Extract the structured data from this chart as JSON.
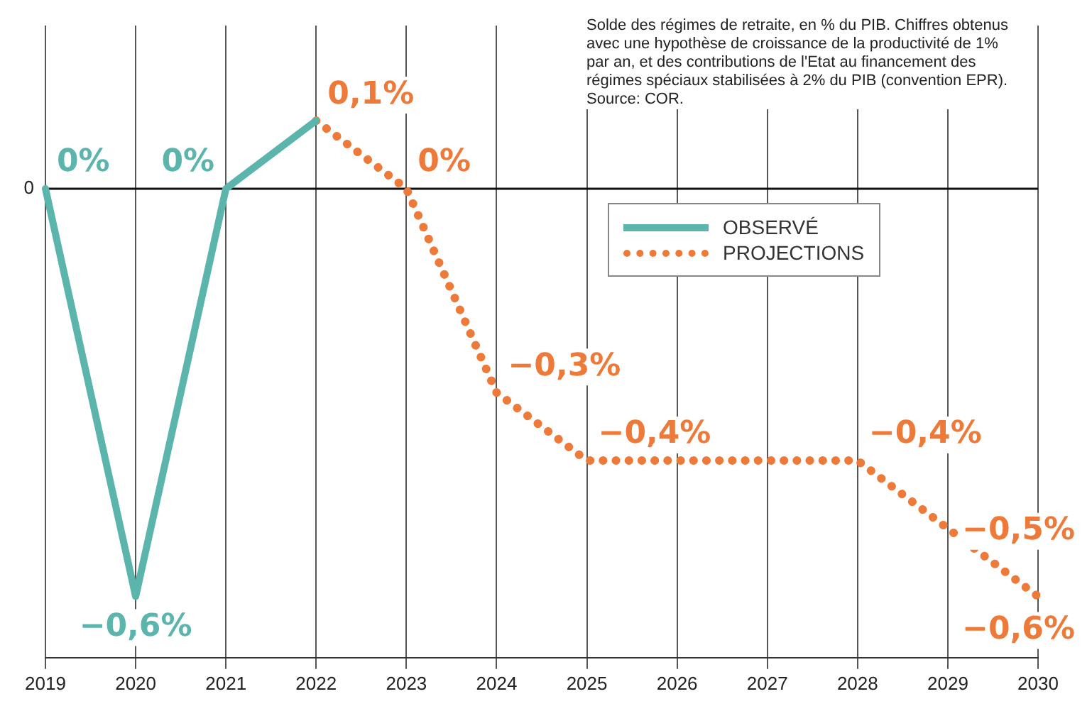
{
  "chart_data": {
    "type": "line",
    "annotations": [
      "0",
      "Solde des régimes de retraite, en % du PIB. Chiffres obtenus avec une hypothèse de croissance de la productivité de 1% par an, et des contributions de l'Etat au financement des régimes spéciaux stabilisées à 2% du PIB (convention EPR). Source: COR."
    ],
    "categories": [
      "2019",
      "2020",
      "2021",
      "2022",
      "2023",
      "2024",
      "2025",
      "2026",
      "2027",
      "2028",
      "2029",
      "2030"
    ],
    "series": [
      {
        "name": "OBSERVÉ",
        "color": "#5bb5ad",
        "line_style": "solid",
        "values": [
          0,
          -0.6,
          0,
          0.1,
          null,
          null,
          null,
          null,
          null,
          null,
          null,
          null
        ],
        "value_labels": [
          "0%",
          "−0,6%",
          "0%",
          null,
          null,
          null,
          null,
          null,
          null,
          null,
          null,
          null
        ]
      },
      {
        "name": "PROJECTIONS",
        "color": "#ee7a3a",
        "line_style": "dotted",
        "values": [
          null,
          null,
          null,
          0.1,
          0,
          -0.3,
          -0.4,
          -0.4,
          -0.4,
          -0.4,
          -0.5,
          -0.6
        ],
        "value_labels": [
          null,
          null,
          null,
          "0,1%",
          "0%",
          "−0,3%",
          "−0,4%",
          null,
          null,
          "−0,4%",
          "−0,5%",
          "−0,6%"
        ]
      }
    ],
    "ylim": [
      -0.69,
      0.24
    ],
    "grid": "x",
    "legend": "top right",
    "marker": "none"
  }
}
